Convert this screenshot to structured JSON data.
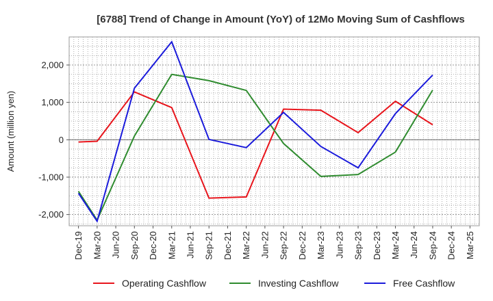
{
  "chart_data": {
    "type": "line",
    "title": "[6788]  Trend of Change in Amount (YoY) of 12Mo Moving Sum of Cashflows",
    "xlabel": "",
    "ylabel": "Amount (million yen)",
    "ylim": [
      -2300,
      2750
    ],
    "yticks": [
      -2000,
      -1000,
      0,
      1000,
      2000
    ],
    "ytick_labels": [
      "-2,000",
      "-1,000",
      "0",
      "1,000",
      "2,000"
    ],
    "categories": [
      "Dec-19",
      "Mar-20",
      "Jun-20",
      "Sep-20",
      "Dec-20",
      "Mar-21",
      "Jun-21",
      "Sep-21",
      "Dec-21",
      "Mar-22",
      "Jun-22",
      "Sep-22",
      "Dec-22",
      "Mar-23",
      "Jun-23",
      "Sep-23",
      "Dec-23",
      "Mar-24",
      "Jun-24",
      "Sep-24",
      "Dec-24",
      "Mar-25"
    ],
    "grid": true,
    "legend_position": "bottom",
    "series": [
      {
        "name": "Operating Cashflow",
        "color": "#e8141b",
        "values": [
          -60,
          -40,
          null,
          1280,
          null,
          860,
          null,
          -1560,
          null,
          -1530,
          null,
          820,
          null,
          790,
          null,
          190,
          null,
          1030,
          null,
          400,
          null,
          null
        ]
      },
      {
        "name": "Investing Cashflow",
        "color": "#2e8b2e",
        "values": [
          -1380,
          -2150,
          null,
          100,
          null,
          1750,
          null,
          1580,
          null,
          1320,
          null,
          -100,
          null,
          -980,
          null,
          -930,
          null,
          -330,
          null,
          1330,
          null,
          null
        ]
      },
      {
        "name": "Free Cashflow",
        "color": "#1a1adb",
        "values": [
          -1430,
          -2180,
          null,
          1380,
          null,
          2620,
          null,
          10,
          null,
          -210,
          null,
          730,
          null,
          -180,
          null,
          -750,
          null,
          700,
          null,
          1730,
          null,
          null
        ]
      }
    ]
  }
}
